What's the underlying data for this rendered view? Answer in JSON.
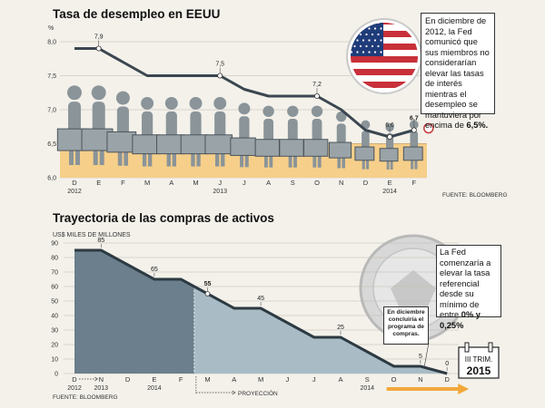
{
  "chart_data": [
    {
      "type": "line",
      "title": "Tasa de desempleo en EEUU",
      "ylabel": "%",
      "ylim": [
        6.0,
        8.0
      ],
      "yticks": [
        "8,0",
        "7,5",
        "7,0",
        "6,5",
        "6,0"
      ],
      "x": [
        "D",
        "E",
        "F",
        "M",
        "A",
        "M",
        "J",
        "J",
        "A",
        "S",
        "O",
        "N",
        "D",
        "E",
        "F"
      ],
      "year_labels": [
        {
          "label": "2012",
          "month_index": 0
        },
        {
          "label": "2013",
          "month_index": 6
        },
        {
          "label": "2014",
          "month_index": 13
        }
      ],
      "values": [
        7.9,
        7.9,
        7.7,
        7.5,
        7.5,
        7.5,
        7.5,
        7.3,
        7.2,
        7.2,
        7.2,
        7.0,
        6.7,
        6.6,
        6.7
      ],
      "annotations": [
        {
          "month_index": 1,
          "label": "7,9"
        },
        {
          "month_index": 6,
          "label": "7,5"
        },
        {
          "month_index": 10,
          "label": "7,2"
        },
        {
          "month_index": 13,
          "label": "6,6"
        },
        {
          "month_index": 14,
          "label": "6,7"
        }
      ],
      "target_band": [
        6.0,
        6.5
      ],
      "source": "FUENTE: BLOOMBERG"
    },
    {
      "type": "area",
      "title": "Trayectoria de las compras de activos",
      "ylabel": "US$ MILES DE MILLONES",
      "ylim": [
        0,
        90
      ],
      "yticks": [
        "90",
        "80",
        "70",
        "60",
        "50",
        "40",
        "30",
        "20",
        "10",
        "0"
      ],
      "x": [
        "D",
        "N",
        "D",
        "E",
        "F",
        "M",
        "A",
        "M",
        "J",
        "J",
        "A",
        "S",
        "O",
        "N",
        "D"
      ],
      "year_labels": [
        {
          "label": "2012",
          "month_index": 0
        },
        {
          "label": "2013",
          "month_index": 1
        },
        {
          "label": "2014",
          "month_index": 3
        },
        {
          "label": "2014",
          "month_index": 11
        }
      ],
      "values": [
        85,
        85,
        75,
        65,
        65,
        55,
        45,
        45,
        35,
        25,
        25,
        15,
        5,
        5,
        0
      ],
      "annotations": [
        {
          "month_index": 1,
          "label": "85"
        },
        {
          "month_index": 3,
          "label": "65"
        },
        {
          "month_index": 5,
          "label": "55"
        },
        {
          "month_index": 7,
          "label": "45"
        },
        {
          "month_index": 10,
          "label": "25"
        },
        {
          "month_index": 13,
          "label": "5"
        },
        {
          "month_index": 14,
          "label": "0"
        }
      ],
      "projection_label": "PROYECCIÓN",
      "source": "FUENTE: BLOOMBERG"
    }
  ],
  "fed_note_1": {
    "text_before": "En diciembre de 2012, la Fed comunicó que sus miembros no considerarían elevar las tasas de interés mientras el desempleo se mantuviera por encima de ",
    "text_bold": "6,5%."
  },
  "fed_note_2": {
    "text_before": "La Fed comenzaría a elevar la tasa referencial desde su mínimo de entre ",
    "text_bold": "0% y 0,25%"
  },
  "program_note": "En diciembre concluiría el programa de compras.",
  "calendar": {
    "label": "III TRIM.",
    "year": "2015"
  },
  "colors": {
    "line": "#3a4650",
    "band": "#f6cf8a",
    "area_dark": "#6b7f8c",
    "area_light": "#a9bcc6",
    "arrow": "#f2a83b",
    "figure": "#8a9499"
  }
}
